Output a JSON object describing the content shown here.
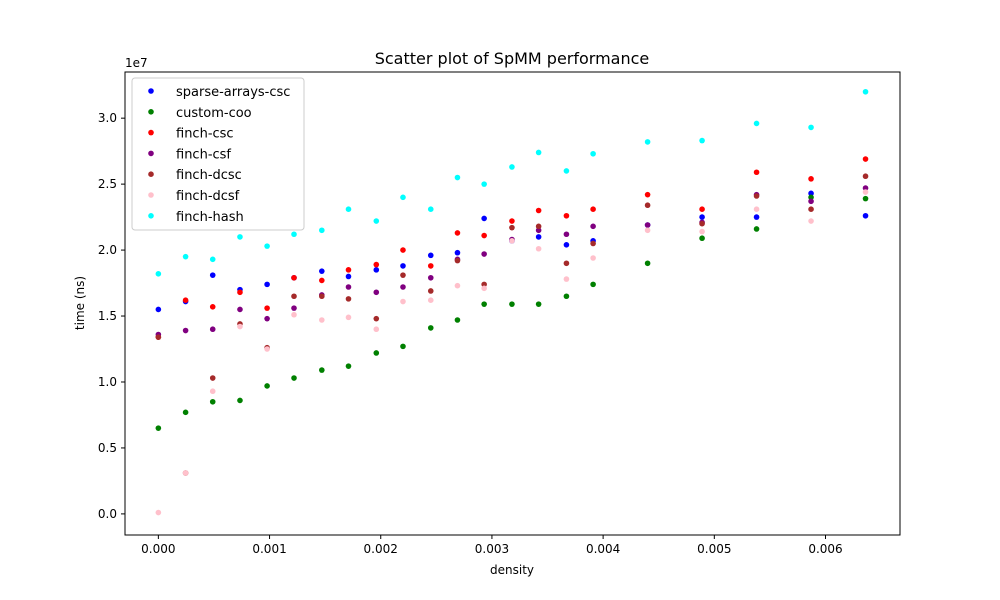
{
  "chart_data": {
    "type": "scatter",
    "title": "Scatter plot of SpMM performance",
    "xlabel": "density",
    "ylabel": "time (ns)",
    "y_offset_label": "1e7",
    "xlim": [
      -0.0003,
      0.00667
    ],
    "ylim": [
      -1600000,
      33500000
    ],
    "x_ticks": [
      0.0,
      0.001,
      0.002,
      0.003,
      0.004,
      0.005,
      0.006
    ],
    "x_tick_labels": [
      "0.000",
      "0.001",
      "0.002",
      "0.003",
      "0.004",
      "0.005",
      "0.006"
    ],
    "y_ticks": [
      0,
      5000000,
      10000000,
      15000000,
      20000000,
      25000000,
      30000000
    ],
    "y_tick_labels": [
      "0.0",
      "0.5",
      "1.0",
      "1.5",
      "2.0",
      "2.5",
      "3.0"
    ],
    "grid": false,
    "legend_position": "upper-left",
    "x": [
      0.0,
      0.000245,
      0.000489,
      0.000734,
      0.000978,
      0.00122,
      0.00147,
      0.00171,
      0.00196,
      0.0022,
      0.00245,
      0.00269,
      0.00293,
      0.00318,
      0.00342,
      0.00367,
      0.00391,
      0.0044,
      0.00489,
      0.00538,
      0.00587,
      0.00636
    ],
    "series": [
      {
        "name": "sparse-arrays-csc",
        "color": "#0000ff",
        "values": [
          15500000,
          16100000,
          18100000,
          17000000,
          17400000,
          17900000,
          18400000,
          18000000,
          18500000,
          18800000,
          19600000,
          19800000,
          22400000,
          20700000,
          21000000,
          20400000,
          20700000,
          21900000,
          22500000,
          22500000,
          24300000,
          22600000
        ]
      },
      {
        "name": "custom-coo",
        "color": "#008000",
        "values": [
          6500000,
          7700000,
          8500000,
          8600000,
          9700000,
          10300000,
          10900000,
          11200000,
          12200000,
          12700000,
          14100000,
          14700000,
          15900000,
          15900000,
          15900000,
          16500000,
          17400000,
          19000000,
          20900000,
          21600000,
          24000000,
          23900000
        ]
      },
      {
        "name": "finch-csc",
        "color": "#ff0000",
        "values": [
          13400000,
          16200000,
          15700000,
          16800000,
          15600000,
          17900000,
          17700000,
          18500000,
          18900000,
          20000000,
          18800000,
          21300000,
          21100000,
          22200000,
          23000000,
          22600000,
          23100000,
          24200000,
          23100000,
          25900000,
          25400000,
          26900000
        ]
      },
      {
        "name": "finch-csf",
        "color": "#800080",
        "values": [
          13600000,
          13900000,
          14000000,
          15500000,
          14800000,
          15600000,
          16600000,
          17200000,
          16800000,
          17200000,
          17900000,
          19300000,
          19700000,
          20800000,
          21500000,
          21200000,
          21800000,
          21900000,
          22100000,
          24200000,
          23700000,
          24700000
        ]
      },
      {
        "name": "finch-dcsc",
        "color": "#a52a2a",
        "values": [
          13400000,
          3100000,
          10300000,
          14400000,
          12600000,
          16500000,
          16500000,
          16300000,
          14800000,
          18100000,
          16900000,
          19200000,
          17400000,
          21700000,
          21800000,
          19000000,
          20500000,
          23400000,
          22000000,
          24100000,
          23100000,
          25600000
        ]
      },
      {
        "name": "finch-dcsf",
        "color": "#ffc0cb",
        "values": [
          100000,
          3100000,
          9300000,
          14200000,
          12500000,
          15100000,
          14700000,
          14900000,
          14000000,
          16100000,
          16200000,
          17300000,
          17100000,
          20700000,
          20100000,
          17800000,
          19400000,
          21500000,
          21400000,
          23100000,
          22200000,
          24400000
        ]
      },
      {
        "name": "finch-hash",
        "color": "#00ffff",
        "values": [
          18200000,
          19500000,
          19300000,
          21000000,
          20300000,
          21200000,
          21500000,
          23100000,
          22200000,
          24000000,
          23100000,
          25500000,
          25000000,
          26300000,
          27400000,
          26000000,
          27300000,
          28200000,
          28300000,
          29600000,
          29300000,
          32000000
        ]
      }
    ]
  }
}
